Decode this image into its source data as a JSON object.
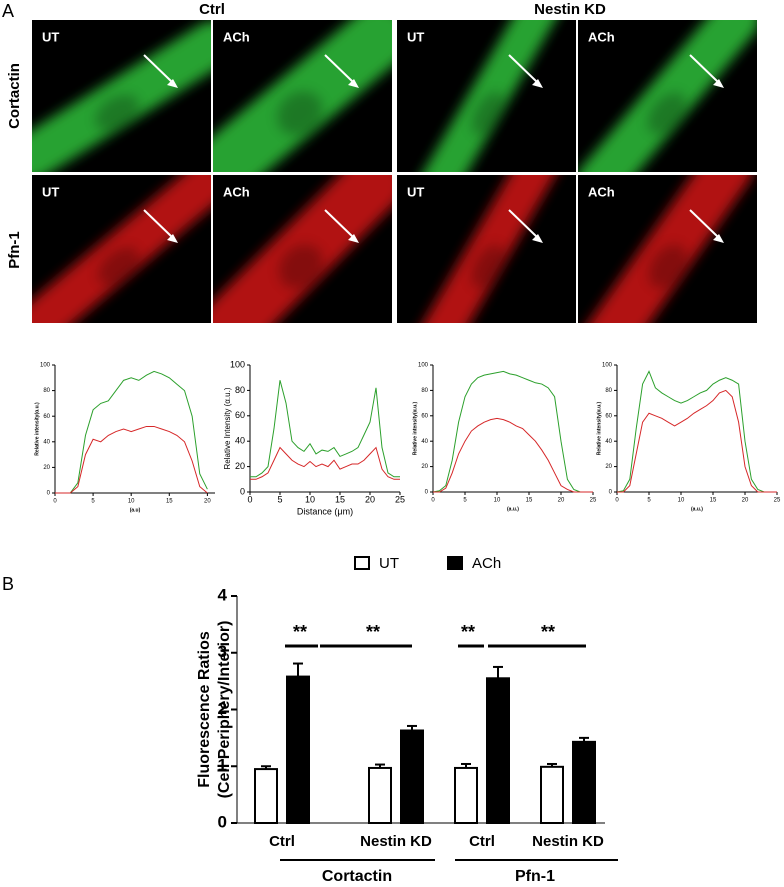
{
  "panel_labels": [
    "A",
    "B"
  ],
  "image_grid": {
    "columns": [
      "Ctrl",
      "Nestin KD"
    ],
    "rows": [
      "Cortactin",
      "Pfn-1"
    ],
    "cells": [
      [
        "UT",
        "ACh",
        "UT",
        "ACh"
      ],
      [
        "UT",
        "ACh",
        "UT",
        "ACh"
      ]
    ]
  },
  "chart_data": [
    {
      "type": "line",
      "ylabel": "Relative intensity(α.u.)",
      "xlabel": "(a.u)",
      "x": [
        0,
        1,
        2,
        3,
        4,
        5,
        6,
        7,
        8,
        9,
        10,
        11,
        12,
        13,
        14,
        15,
        16,
        17,
        18,
        19,
        20
      ],
      "series": [
        {
          "color": "#2ca02c",
          "values": [
            0,
            0,
            0,
            8,
            45,
            65,
            70,
            72,
            80,
            88,
            90,
            88,
            92,
            95,
            93,
            90,
            85,
            80,
            60,
            15,
            3
          ]
        },
        {
          "color": "#d62728",
          "values": [
            0,
            0,
            0,
            5,
            30,
            42,
            40,
            45,
            48,
            50,
            48,
            50,
            52,
            52,
            50,
            48,
            45,
            40,
            25,
            5,
            0
          ]
        }
      ],
      "xlim": [
        0,
        21
      ],
      "xticks": [
        0,
        5,
        10,
        15,
        20
      ],
      "ylim": [
        0,
        100
      ],
      "yticks": [
        0,
        20,
        40,
        60,
        80,
        100
      ]
    },
    {
      "type": "line",
      "ylabel": "Relative Intensity (α.u.)",
      "xlabel": "Distance (μm)",
      "x": [
        0,
        1,
        2,
        3,
        4,
        5,
        6,
        7,
        8,
        9,
        10,
        11,
        12,
        13,
        14,
        15,
        16,
        17,
        18,
        19,
        20,
        21,
        22,
        23,
        24,
        25
      ],
      "series": [
        {
          "color": "#2ca02c",
          "values": [
            12,
            12,
            15,
            20,
            50,
            88,
            70,
            40,
            35,
            32,
            38,
            30,
            33,
            32,
            35,
            28,
            30,
            32,
            35,
            45,
            55,
            82,
            35,
            15,
            12,
            12
          ]
        },
        {
          "color": "#d62728",
          "values": [
            10,
            10,
            12,
            15,
            25,
            35,
            30,
            25,
            22,
            20,
            24,
            20,
            22,
            20,
            25,
            18,
            20,
            22,
            22,
            25,
            30,
            35,
            18,
            12,
            10,
            10
          ]
        }
      ],
      "xlim": [
        0,
        25
      ],
      "xticks": [
        0,
        5,
        10,
        15,
        20,
        25
      ],
      "ylim": [
        0,
        100
      ],
      "yticks": [
        0,
        20,
        40,
        60,
        80,
        100
      ]
    },
    {
      "type": "line",
      "ylabel": "Relative intensity(α.u.)",
      "xlabel": "(a.u.)",
      "x": [
        0,
        1,
        2,
        3,
        4,
        5,
        6,
        7,
        8,
        9,
        10,
        11,
        12,
        13,
        14,
        15,
        16,
        17,
        18,
        19,
        20,
        21,
        22,
        23,
        24,
        25
      ],
      "series": [
        {
          "color": "#2ca02c",
          "values": [
            0,
            1,
            5,
            25,
            55,
            75,
            85,
            90,
            92,
            93,
            94,
            95,
            93,
            92,
            90,
            88,
            86,
            85,
            82,
            75,
            40,
            10,
            2,
            0,
            0,
            0
          ]
        },
        {
          "color": "#d62728",
          "values": [
            0,
            0,
            3,
            15,
            30,
            40,
            48,
            52,
            55,
            57,
            58,
            57,
            55,
            52,
            50,
            45,
            40,
            33,
            25,
            15,
            5,
            2,
            0,
            0,
            0,
            0
          ]
        }
      ],
      "xlim": [
        0,
        25
      ],
      "xticks": [
        0,
        5,
        10,
        15,
        20,
        25
      ],
      "ylim": [
        0,
        100
      ],
      "yticks": [
        0,
        20,
        40,
        60,
        80,
        100
      ]
    },
    {
      "type": "line",
      "ylabel": "Relative intensity(α.u.)",
      "xlabel": "(a.u.)",
      "x": [
        0,
        1,
        2,
        3,
        4,
        5,
        6,
        7,
        8,
        9,
        10,
        11,
        12,
        13,
        14,
        15,
        16,
        17,
        18,
        19,
        20,
        21,
        22,
        23,
        24,
        25
      ],
      "series": [
        {
          "color": "#2ca02c",
          "values": [
            0,
            1,
            10,
            50,
            85,
            95,
            82,
            78,
            75,
            72,
            70,
            72,
            75,
            78,
            80,
            85,
            88,
            90,
            88,
            85,
            40,
            10,
            2,
            0,
            0,
            0
          ]
        },
        {
          "color": "#d62728",
          "values": [
            0,
            0,
            5,
            30,
            55,
            62,
            60,
            58,
            55,
            52,
            55,
            58,
            62,
            65,
            68,
            72,
            78,
            80,
            75,
            55,
            20,
            5,
            0,
            0,
            0,
            0
          ]
        }
      ],
      "xlim": [
        0,
        25
      ],
      "xticks": [
        0,
        5,
        10,
        15,
        20,
        25
      ],
      "ylim": [
        0,
        100
      ],
      "yticks": [
        0,
        20,
        40,
        60,
        80,
        100
      ]
    },
    {
      "type": "bar",
      "ylabel": [
        "Fluorescence Ratios",
        "(Cell Periphery/Interior)"
      ],
      "categories": [
        "Ctrl",
        "Nestin KD",
        "Ctrl",
        "Nestin KD"
      ],
      "groups": [
        "Cortactin",
        "Pfn-1"
      ],
      "series": [
        {
          "name": "UT",
          "color": "#ffffff",
          "values": [
            0.95,
            0.97,
            0.97,
            0.99
          ],
          "errors": [
            0.05,
            0.06,
            0.07,
            0.05
          ]
        },
        {
          "name": "ACh",
          "color": "#000000",
          "values": [
            2.58,
            1.63,
            2.55,
            1.43
          ],
          "errors": [
            0.23,
            0.08,
            0.2,
            0.07
          ]
        }
      ],
      "annotations": [
        "**",
        "**",
        "**",
        "**"
      ],
      "ylim": [
        0,
        4
      ],
      "yticks": [
        0,
        1,
        2,
        3,
        4
      ]
    }
  ]
}
